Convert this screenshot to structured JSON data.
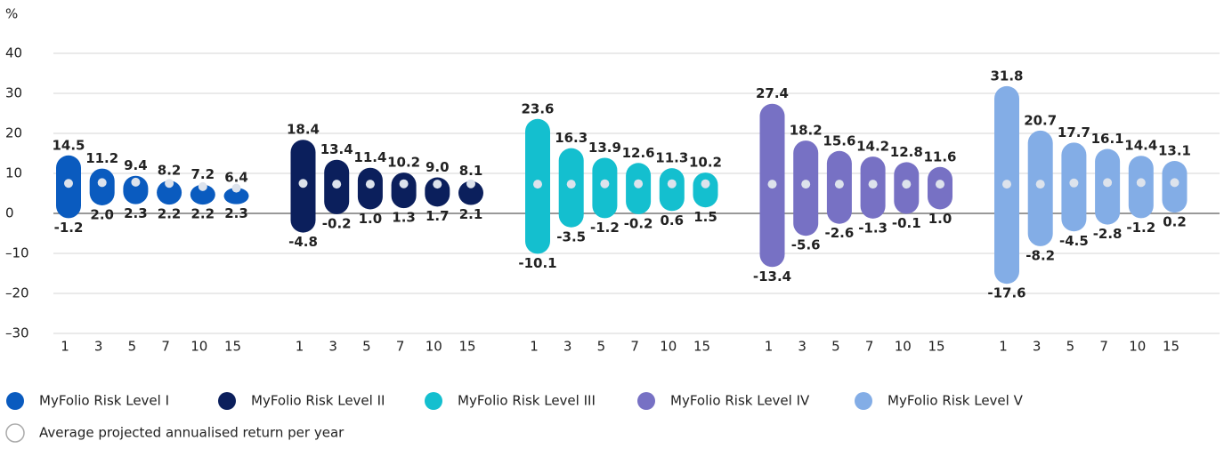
{
  "chart_data": {
    "type": "range",
    "y_label": "%",
    "categories": [
      "1",
      "3",
      "5",
      "7",
      "10",
      "15"
    ],
    "ylim": [
      -30,
      40
    ],
    "yticks": [
      {
        "value": -30,
        "label": "–30"
      },
      {
        "value": -20,
        "label": "–20"
      },
      {
        "value": -10,
        "label": "–10"
      },
      0,
      10,
      20,
      30,
      40
    ],
    "grid": true,
    "average_label": "Average projected annualised return per year",
    "series": [
      {
        "name": "MyFolio Risk Level I",
        "color": "#0a5bbf",
        "high": [
          14.5,
          11.2,
          9.4,
          8.2,
          7.2,
          6.4
        ],
        "low": [
          -1.2,
          2.0,
          2.3,
          2.2,
          2.2,
          2.3
        ],
        "high_labels": [
          "14.5",
          "11.2",
          "9.4",
          "8.2",
          "7.2",
          "6.4"
        ],
        "low_labels": [
          "-1.2",
          "2.0",
          "2.3",
          "2.2",
          "2.2",
          "2.3"
        ],
        "average": [
          7.5,
          7.7,
          7.8,
          7.5,
          6.7,
          6.3
        ]
      },
      {
        "name": "MyFolio Risk Level II",
        "color": "#0b1f5c",
        "high": [
          18.4,
          13.4,
          11.4,
          10.2,
          9.0,
          8.1
        ],
        "low": [
          -4.8,
          -0.2,
          1.0,
          1.3,
          1.7,
          2.1
        ],
        "high_labels": [
          "18.4",
          "13.4",
          "11.4",
          "10.2",
          "9.0",
          "8.1"
        ],
        "low_labels": [
          "-4.8",
          "-0.2",
          "1.0",
          "1.3",
          "1.7",
          "2.1"
        ],
        "average": [
          7.5,
          7.3,
          7.3,
          7.4,
          7.3,
          7.4
        ]
      },
      {
        "name": "MyFolio Risk Level III",
        "color": "#14bfcf",
        "high": [
          23.6,
          16.3,
          13.9,
          12.6,
          11.3,
          10.2
        ],
        "low": [
          -10.1,
          -3.5,
          -1.2,
          -0.2,
          0.6,
          1.5
        ],
        "high_labels": [
          "23.6",
          "16.3",
          "13.9",
          "12.6",
          "11.3",
          "10.2"
        ],
        "low_labels": [
          "-10.1",
          "-3.5",
          "-1.2",
          "-0.2",
          "0.6",
          "1.5"
        ],
        "average": [
          7.3,
          7.3,
          7.4,
          7.4,
          7.4,
          7.4
        ]
      },
      {
        "name": "MyFolio Risk Level IV",
        "color": "#7771c4",
        "high": [
          27.4,
          18.2,
          15.6,
          14.2,
          12.8,
          11.6
        ],
        "low": [
          -13.4,
          -5.6,
          -2.6,
          -1.3,
          -0.1,
          1.0
        ],
        "high_labels": [
          "27.4",
          "18.2",
          "15.6",
          "14.2",
          "12.8",
          "11.6"
        ],
        "low_labels": [
          "-13.4",
          "-5.6",
          "-2.6",
          "-1.3",
          "-0.1",
          "1.0"
        ],
        "average": [
          7.3,
          7.3,
          7.3,
          7.3,
          7.3,
          7.3
        ]
      },
      {
        "name": "MyFolio Risk Level V",
        "color": "#83ade6",
        "high": [
          31.8,
          20.7,
          17.7,
          16.1,
          14.4,
          13.1
        ],
        "low": [
          -17.6,
          -8.2,
          -4.5,
          -2.8,
          -1.2,
          0.2
        ],
        "high_labels": [
          "31.8",
          "20.7",
          "17.7",
          "16.1",
          "14.4",
          "13.1"
        ],
        "low_labels": [
          "-17.6",
          "-8.2",
          "-4.5",
          "-2.8",
          "-1.2",
          "0.2"
        ],
        "average": [
          7.3,
          7.3,
          7.6,
          7.7,
          7.7,
          7.7
        ]
      }
    ]
  }
}
